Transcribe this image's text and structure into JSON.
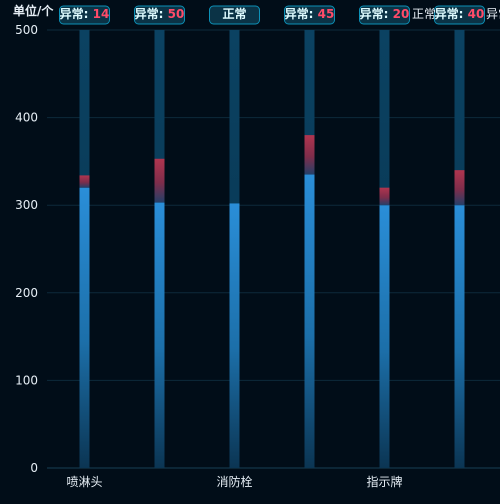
{
  "chart_data": {
    "type": "bar",
    "ylabel": "单位/个",
    "ylim": [
      0,
      500
    ],
    "yticks": [
      0,
      100,
      200,
      300,
      400,
      500
    ],
    "grid": true,
    "categories": [
      "喷淋头",
      "",
      "消防栓",
      "",
      "指示牌",
      ""
    ],
    "category_label_visible": [
      true,
      false,
      true,
      false,
      true,
      false
    ],
    "series": [
      {
        "values": [
          320,
          303,
          302,
          335,
          300,
          300
        ]
      },
      {
        "values": [
          14,
          50,
          0,
          45,
          20,
          40
        ]
      }
    ],
    "total_capacity": 500,
    "status_labels": [
      {
        "status": "异常",
        "value": "14"
      },
      {
        "status": "异常",
        "value": "50"
      },
      {
        "status": "正常",
        "value": ""
      },
      {
        "status": "异常",
        "value": "45"
      },
      {
        "status": "异常",
        "value": "20"
      },
      {
        "status": "异常",
        "value": "40"
      }
    ],
    "overflow_labels": [
      "正常",
      "异常"
    ],
    "colors": {
      "background": "#010d18",
      "normal_bar": "#2a8ed8",
      "abnormal_bar": "#b0354f",
      "track": "#073a57",
      "grid": "#0d2a3b",
      "axis_text": "#e6eef5",
      "label_border": "#0d91b7",
      "label_bg": "#0b3346",
      "label_text": "#dffcff",
      "abnormal_text": "#ff4b69"
    }
  }
}
